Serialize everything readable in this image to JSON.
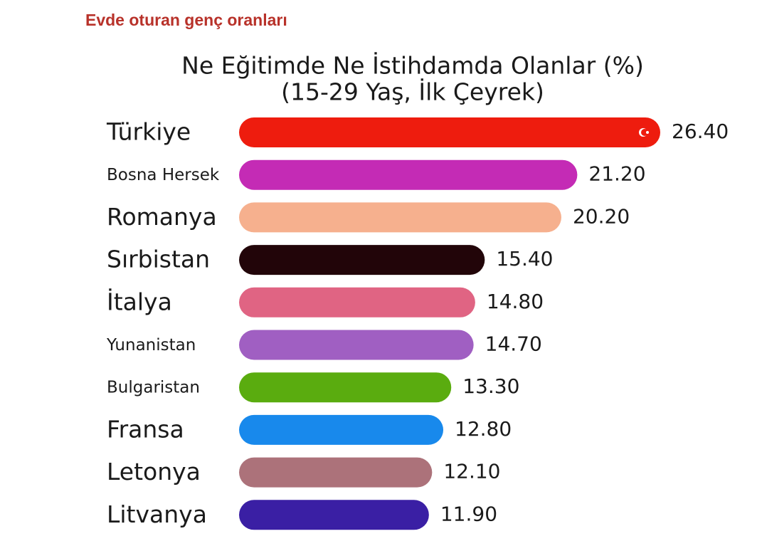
{
  "header": {
    "title": "Evde oturan genç oranları"
  },
  "chart_data": {
    "type": "hbar",
    "title": "Ne Eğitimde Ne İstihdamda Olanlar (%)",
    "subtitle": "(15-29 Yaş, İlk Çeyrek)",
    "categories": [
      "Türkiye",
      "Bosna Hersek",
      "Romanya",
      "Sırbistan",
      "İtalya",
      "Yunanistan",
      "Bulgaristan",
      "Fransa",
      "Letonya",
      "Litvanya"
    ],
    "values": [
      26.4,
      21.2,
      20.2,
      15.4,
      14.8,
      14.7,
      13.3,
      12.8,
      12.1,
      11.9
    ],
    "value_labels": [
      "26.40",
      "21.20",
      "20.20",
      "15.40",
      "14.80",
      "14.70",
      "13.30",
      "12.80",
      "12.10",
      "11.90"
    ],
    "colors": [
      "#ee1c0e",
      "#c42bb5",
      "#f6b08e",
      "#220509",
      "#e06483",
      "#a05fc2",
      "#5aac0f",
      "#1889ec",
      "#ac727a",
      "#3a1fa4"
    ]
  }
}
